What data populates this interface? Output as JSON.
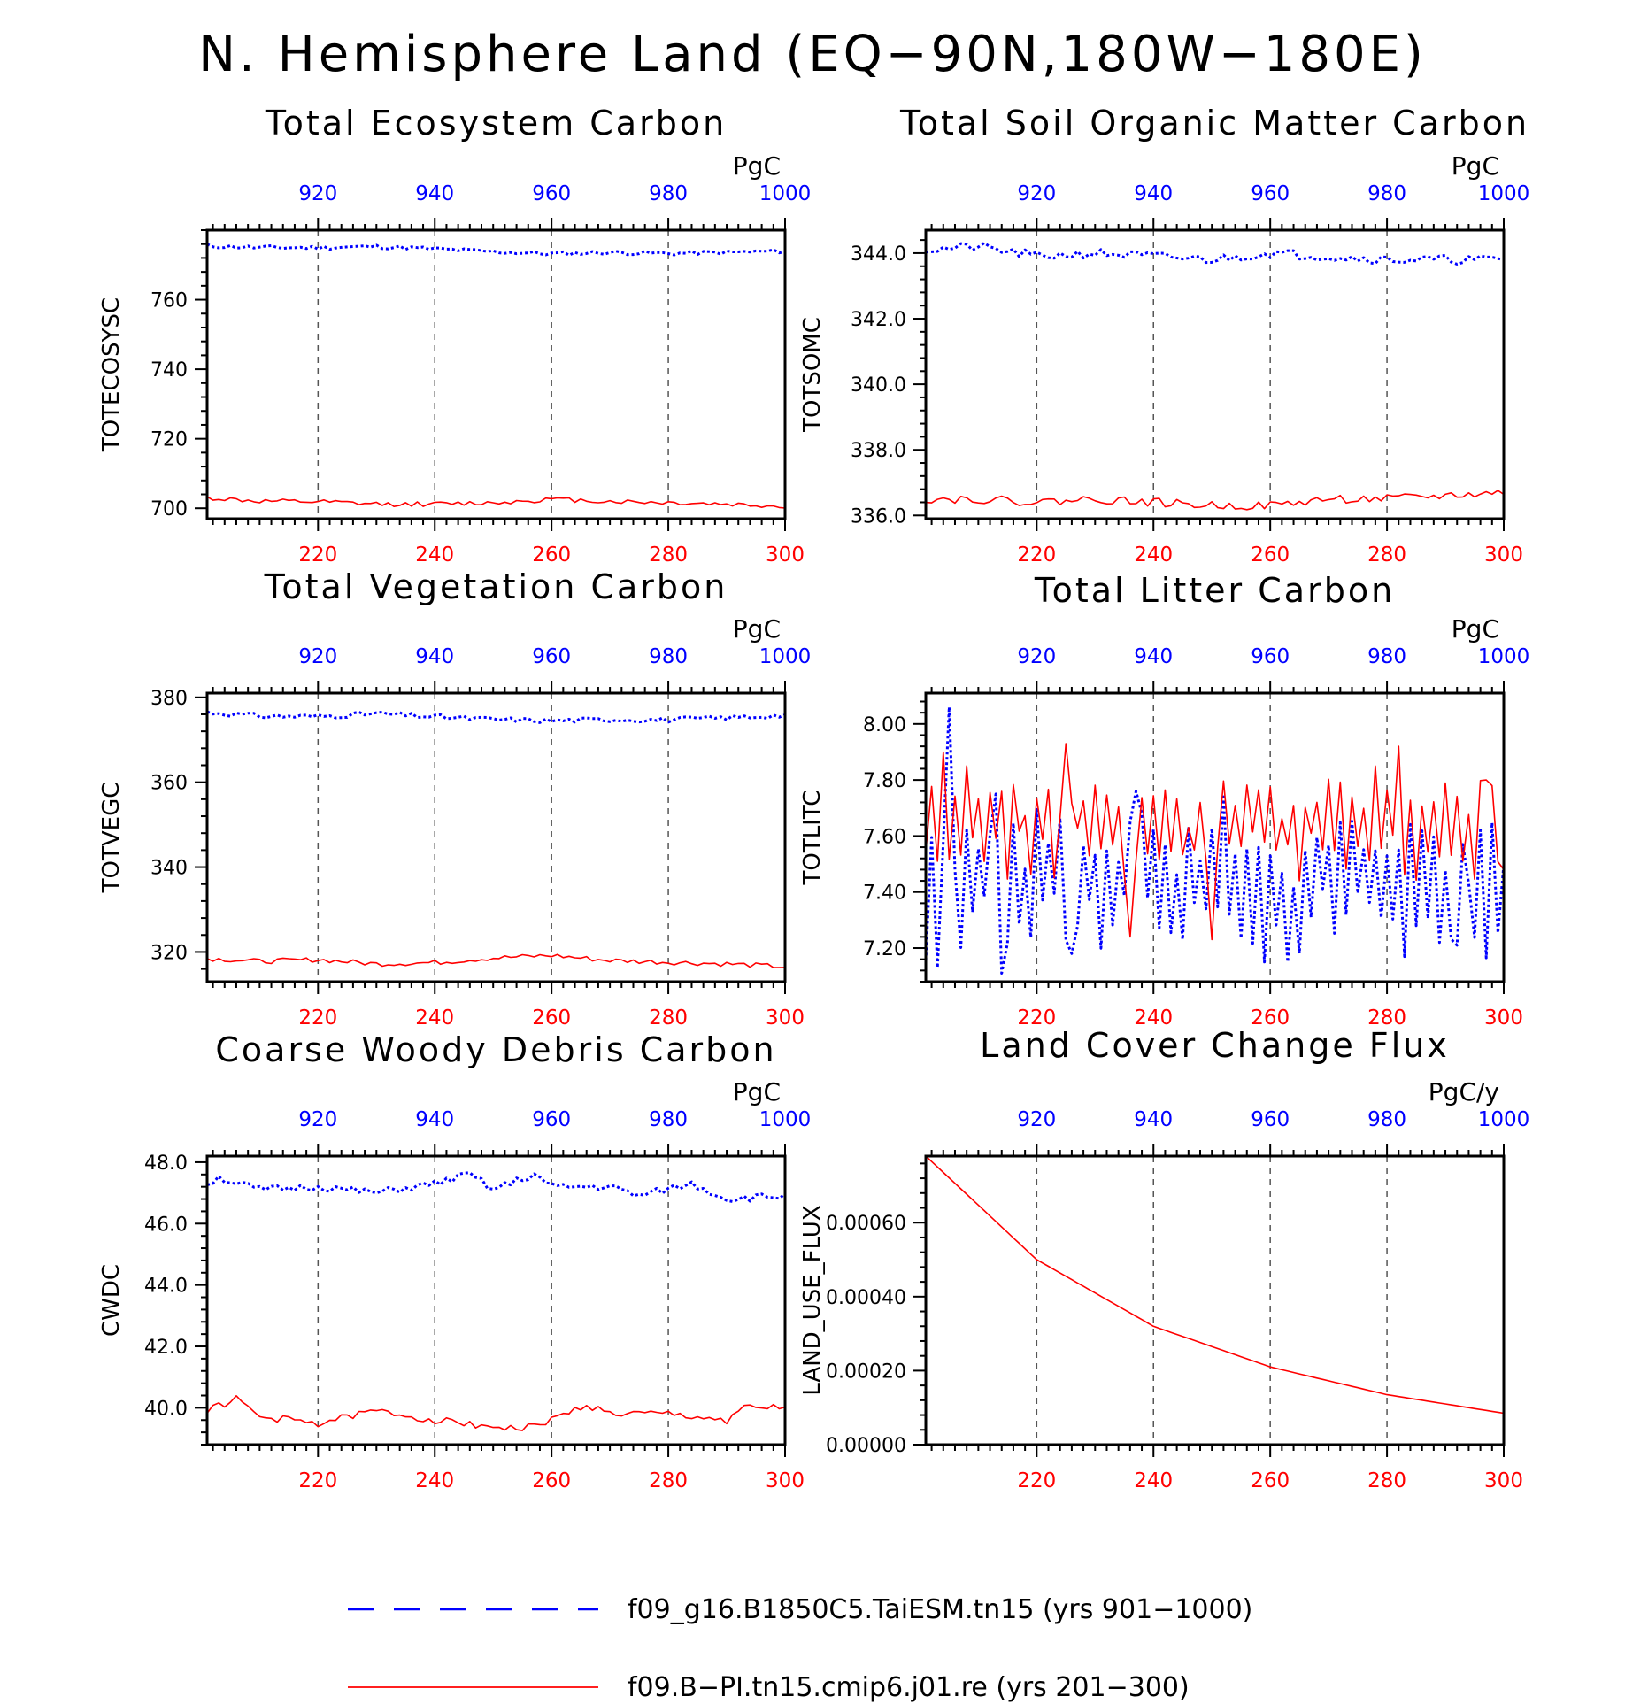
{
  "figure": {
    "title": "N. Hemisphere Land (EQ−90N,180W−180E)",
    "colors": {
      "ref": "#0000ff",
      "model": "#ff0000",
      "axis": "#000000",
      "grid": "#555555"
    }
  },
  "legend": [
    {
      "label": "f09_g16.B1850C5.TaiESM.tn15 (yrs 901−1000)",
      "color": "#0000ff",
      "style": "dashed"
    },
    {
      "label": "f09.B−PI.tn15.cmip6.j01.re (yrs 201−300)",
      "color": "#ff0000",
      "style": "solid"
    }
  ],
  "chart_data": [
    {
      "type": "line",
      "title": "Total Ecosystem Carbon",
      "ylabel": "TOTECOSYSC",
      "units": "PgC",
      "ylim": [
        697,
        780
      ],
      "yticks": [
        700,
        720,
        740,
        760
      ],
      "ytick_labels": [
        "700",
        "720",
        "740",
        "760"
      ],
      "x_bottom": {
        "range": [
          201,
          300
        ],
        "ticks": [
          220,
          240,
          260,
          280,
          300
        ]
      },
      "x_top": {
        "range": [
          901,
          1000
        ],
        "ticks": [
          920,
          940,
          960,
          980,
          1000
        ]
      },
      "series": [
        {
          "name": "f09_g16.B1850C5.TaiESM.tn15",
          "axis": "top",
          "color": "#0000ff",
          "style": "dotted",
          "key_x": [
            901,
            910,
            920,
            930,
            940,
            950,
            960,
            970,
            980,
            990,
            1000
          ],
          "key_y": [
            775.5,
            775.0,
            775.0,
            775.3,
            774.6,
            773.8,
            773.2,
            773.6,
            773.3,
            773.6,
            774.0
          ],
          "noise": 0.6,
          "seed": 11
        },
        {
          "name": "f09.B−PI.tn15.cmip6.j01.re",
          "axis": "bottom",
          "color": "#ff0000",
          "style": "solid",
          "key_x": [
            201,
            210,
            220,
            230,
            240,
            250,
            260,
            270,
            280,
            290,
            300
          ],
          "key_y": [
            703.0,
            702.0,
            701.8,
            701.2,
            701.2,
            701.6,
            702.6,
            702.0,
            701.6,
            701.2,
            700.5
          ],
          "noise": 0.7,
          "seed": 12
        }
      ]
    },
    {
      "type": "line",
      "title": "Total Soil Organic Matter Carbon",
      "ylabel": "TOTSOMC",
      "units": "PgC",
      "ylim": [
        335.9,
        344.7
      ],
      "yticks": [
        336,
        338,
        340,
        342,
        344
      ],
      "ytick_labels": [
        "336.0",
        "338.0",
        "340.0",
        "342.0",
        "344.0"
      ],
      "x_bottom": {
        "range": [
          201,
          300
        ],
        "ticks": [
          220,
          240,
          260,
          280,
          300
        ]
      },
      "x_top": {
        "range": [
          901,
          1000
        ],
        "ticks": [
          920,
          940,
          960,
          980,
          1000
        ]
      },
      "series": [
        {
          "name": "f09_g16.B1850C5.TaiESM.tn15",
          "axis": "top",
          "color": "#0000ff",
          "style": "dotted",
          "key_x": [
            901,
            910,
            920,
            930,
            940,
            950,
            960,
            970,
            980,
            990,
            1000
          ],
          "key_y": [
            344.1,
            344.2,
            343.9,
            344.0,
            343.9,
            343.8,
            344.0,
            343.9,
            343.8,
            343.8,
            343.8
          ],
          "noise": 0.14,
          "seed": 21
        },
        {
          "name": "f09.B−PI.tn15.cmip6.j01.re",
          "axis": "bottom",
          "color": "#ff0000",
          "style": "solid",
          "key_x": [
            201,
            210,
            220,
            230,
            240,
            250,
            260,
            270,
            280,
            290,
            300
          ],
          "key_y": [
            336.5,
            336.5,
            336.4,
            336.5,
            336.4,
            336.3,
            336.3,
            336.5,
            336.5,
            336.6,
            336.7
          ],
          "noise": 0.13,
          "seed": 22
        }
      ]
    },
    {
      "type": "line",
      "title": "Total Vegetation Carbon",
      "ylabel": "TOTVEGC",
      "units": "PgC",
      "ylim": [
        313,
        381
      ],
      "yticks": [
        320,
        340,
        360,
        380
      ],
      "ytick_labels": [
        "320",
        "340",
        "360",
        "380"
      ],
      "x_bottom": {
        "range": [
          201,
          300
        ],
        "ticks": [
          220,
          240,
          260,
          280,
          300
        ]
      },
      "x_top": {
        "range": [
          901,
          1000
        ],
        "ticks": [
          920,
          940,
          960,
          980,
          1000
        ]
      },
      "series": [
        {
          "name": "f09_g16.B1850C5.TaiESM.tn15",
          "axis": "top",
          "color": "#0000ff",
          "style": "dotted",
          "key_x": [
            901,
            910,
            920,
            930,
            940,
            950,
            960,
            970,
            980,
            990,
            1000
          ],
          "key_y": [
            376.5,
            375.6,
            375.5,
            376.2,
            375.4,
            374.8,
            374.5,
            374.8,
            374.7,
            375.2,
            375.8
          ],
          "noise": 0.6,
          "seed": 31
        },
        {
          "name": "f09.B−PI.tn15.cmip6.j01.re",
          "axis": "bottom",
          "color": "#ff0000",
          "style": "solid",
          "key_x": [
            201,
            210,
            220,
            230,
            240,
            250,
            260,
            270,
            280,
            290,
            300
          ],
          "key_y": [
            318.5,
            317.8,
            318.2,
            317.2,
            317.5,
            318.6,
            319.2,
            318.0,
            317.6,
            317.2,
            316.5
          ],
          "noise": 0.6,
          "seed": 32
        }
      ]
    },
    {
      "type": "line",
      "title": "Total Litter Carbon",
      "ylabel": "TOTLITC",
      "units": "PgC",
      "ylim": [
        7.08,
        8.11
      ],
      "yticks": [
        7.2,
        7.4,
        7.6,
        7.8,
        8.0
      ],
      "ytick_labels": [
        "7.20",
        "7.40",
        "7.60",
        "7.80",
        "8.00"
      ],
      "x_bottom": {
        "range": [
          201,
          300
        ],
        "ticks": [
          220,
          240,
          260,
          280,
          300
        ]
      },
      "x_top": {
        "range": [
          901,
          1000
        ],
        "ticks": [
          920,
          940,
          960,
          980,
          1000
        ]
      },
      "series": [
        {
          "name": "f09_g16.B1850C5.TaiESM.tn15",
          "axis": "top",
          "color": "#0000ff",
          "style": "dotted",
          "key_x": [
            901,
            1000
          ],
          "key_y": [
            7.43,
            7.43
          ],
          "noise": 0.17,
          "noise_mode": "oscillating",
          "seed": 41,
          "peaks": [
            [
              905,
              8.06
            ],
            [
              903,
              7.13
            ],
            [
              914,
              7.11
            ],
            [
              913,
              7.75
            ],
            [
              937,
              7.76
            ],
            [
              926,
              7.18
            ],
            [
              959,
              7.15
            ],
            [
              963,
              7.15
            ],
            [
              952,
              7.74
            ],
            [
              982,
              7.55
            ],
            [
              989,
              7.22
            ],
            [
              992,
              7.21
            ],
            [
              993,
              7.57
            ]
          ]
        },
        {
          "name": "f09.B−PI.tn15.cmip6.j01.re",
          "axis": "bottom",
          "color": "#ff0000",
          "style": "solid",
          "key_x": [
            201,
            300
          ],
          "key_y": [
            7.63,
            7.63
          ],
          "noise": 0.13,
          "noise_mode": "oscillating",
          "seed": 42,
          "peaks": [
            [
              204,
              7.9
            ],
            [
              208,
              7.85
            ],
            [
              225,
              7.93
            ],
            [
              282,
              7.92
            ],
            [
              278,
              7.85
            ],
            [
              297,
              7.8
            ],
            [
              250,
              7.23
            ],
            [
              236,
              7.24
            ],
            [
              300,
              7.48
            ]
          ]
        }
      ]
    },
    {
      "type": "line",
      "title": "Coarse Woody Debris Carbon",
      "ylabel": "CWDC",
      "units": "PgC",
      "ylim": [
        38.8,
        48.2
      ],
      "yticks": [
        40,
        42,
        44,
        46,
        48
      ],
      "ytick_labels": [
        "40.0",
        "42.0",
        "44.0",
        "46.0",
        "48.0"
      ],
      "x_bottom": {
        "range": [
          201,
          300
        ],
        "ticks": [
          220,
          240,
          260,
          280,
          300
        ]
      },
      "x_top": {
        "range": [
          901,
          1000
        ],
        "ticks": [
          920,
          940,
          960,
          980,
          1000
        ]
      },
      "series": [
        {
          "name": "f09_g16.B1850C5.TaiESM.tn15",
          "axis": "top",
          "color": "#0000ff",
          "style": "dotted",
          "key_x": [
            901,
            903,
            910,
            920,
            930,
            940,
            946,
            950,
            957,
            960,
            970,
            975,
            984,
            990,
            1000
          ],
          "key_y": [
            47.3,
            47.5,
            47.1,
            47.2,
            47.0,
            47.3,
            47.6,
            47.1,
            47.6,
            47.2,
            47.2,
            46.9,
            47.3,
            46.8,
            46.9
          ],
          "noise": 0.12,
          "seed": 51
        },
        {
          "name": "f09.B−PI.tn15.cmip6.j01.re",
          "axis": "bottom",
          "color": "#ff0000",
          "style": "solid",
          "key_x": [
            201,
            206,
            210,
            220,
            230,
            240,
            250,
            255,
            260,
            266,
            270,
            280,
            290,
            293,
            300
          ],
          "key_y": [
            39.9,
            40.3,
            39.7,
            39.5,
            39.9,
            39.6,
            39.4,
            39.3,
            39.6,
            40.1,
            39.8,
            39.8,
            39.6,
            40.0,
            40.0
          ],
          "noise": 0.12,
          "seed": 52
        }
      ]
    },
    {
      "type": "line",
      "title": "Land Cover Change Flux",
      "ylabel": "LAND_USE_FLUX",
      "units": "PgC/y",
      "ylim": [
        0,
        0.00078
      ],
      "yticks": [
        0,
        0.0002,
        0.0004,
        0.0006
      ],
      "ytick_labels": [
        "0.00000",
        "0.00020",
        "0.00040",
        "0.00060"
      ],
      "x_bottom": {
        "range": [
          201,
          300
        ],
        "ticks": [
          220,
          240,
          260,
          280,
          300
        ]
      },
      "x_top": {
        "range": [
          901,
          1000
        ],
        "ticks": [
          920,
          940,
          960,
          980,
          1000
        ]
      },
      "series": [
        {
          "name": "f09.B−PI.tn15.cmip6.j01.re",
          "axis": "bottom",
          "color": "#ff0000",
          "style": "solid",
          "key_x": [
            201,
            220,
            240,
            260,
            280,
            300
          ],
          "key_y": [
            0.00078,
            0.0005,
            0.00032,
            0.00021,
            0.000135,
            8.5e-05
          ],
          "noise": 0,
          "seed": 61,
          "smooth": true
        }
      ]
    }
  ]
}
